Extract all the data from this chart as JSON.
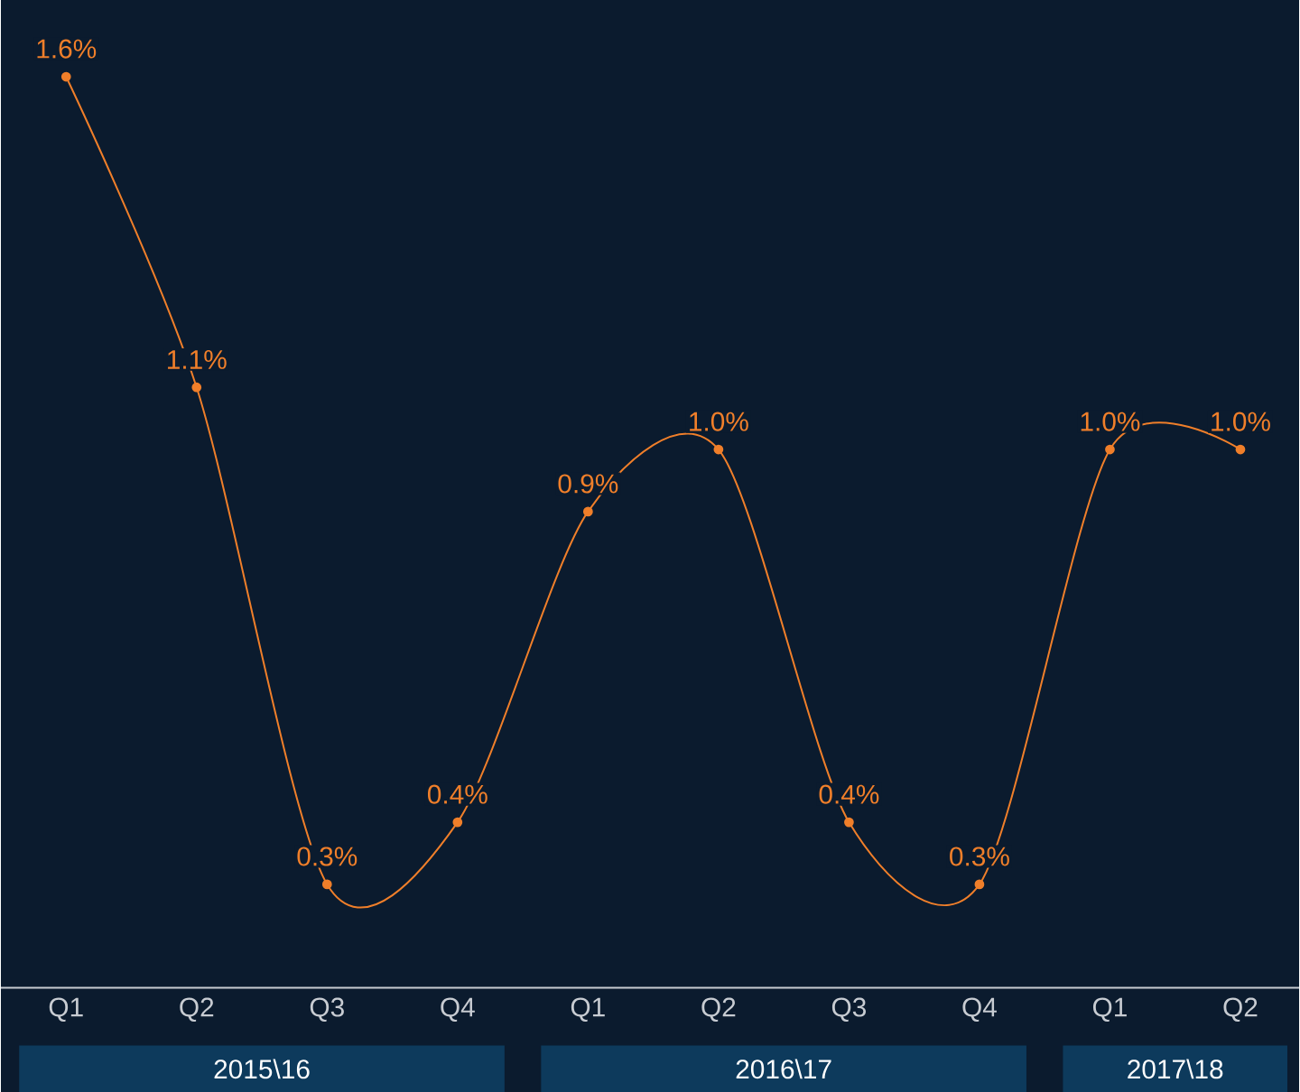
{
  "chart_data": {
    "type": "line",
    "categories": [
      "Q1",
      "Q2",
      "Q3",
      "Q4",
      "Q1",
      "Q2",
      "Q3",
      "Q4",
      "Q1",
      "Q2"
    ],
    "values": [
      1.6,
      1.1,
      0.3,
      0.4,
      0.9,
      1.0,
      0.4,
      0.3,
      1.0,
      1.0
    ],
    "value_labels": [
      "1.6%",
      "1.1%",
      "0.3%",
      "0.4%",
      "0.9%",
      "1.0%",
      "0.4%",
      "0.3%",
      "1.0%",
      "1.0%"
    ],
    "color": "#f07f2a",
    "marker": "circle",
    "line_style": "solid",
    "grid": false,
    "annotations": [
      "2015\\16",
      "2016\\17",
      "2017\\18"
    ]
  }
}
